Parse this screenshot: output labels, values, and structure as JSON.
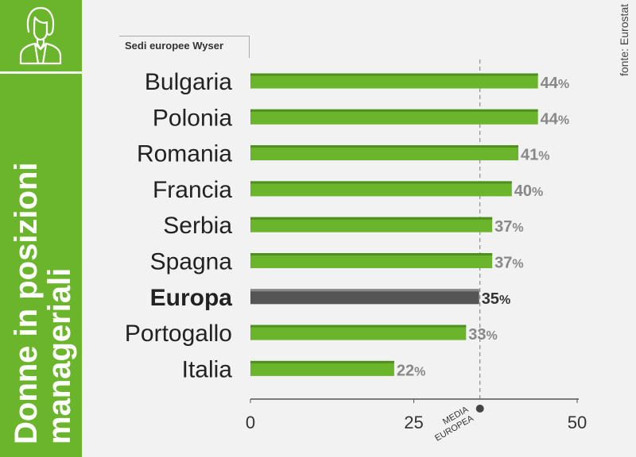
{
  "sidebar": {
    "title_line1": "Donne in posizioni",
    "title_line2": "manageriali",
    "icon": "businesswoman-icon",
    "color": "#6bb52c"
  },
  "header_label": "Sedi europee Wyser",
  "source": "fonte: Eurostat",
  "chart_data": {
    "type": "bar",
    "orientation": "horizontal",
    "categories": [
      "Bulgaria",
      "Polonia",
      "Romania",
      "Francia",
      "Serbia",
      "Spagna",
      "Europa",
      "Portogallo",
      "Italia"
    ],
    "values": [
      44,
      44,
      41,
      40,
      37,
      37,
      35,
      33,
      22
    ],
    "value_suffix": "%",
    "highlight_category": "Europa",
    "xlim": [
      0,
      50
    ],
    "xticks": [
      0,
      25,
      50
    ],
    "reference_line": {
      "value": 35,
      "label_line1": "MEDIA",
      "label_line2": "EUROPEA"
    },
    "colors": {
      "bar": "#6bb52c",
      "bar_top": "#4f8f1f",
      "highlight": "#555555",
      "highlight_top": "#888888"
    }
  }
}
